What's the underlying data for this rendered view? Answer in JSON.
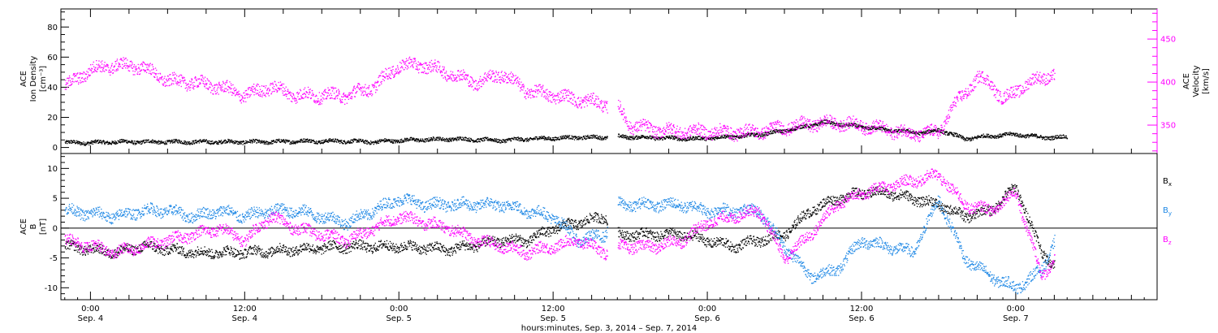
{
  "chart_data": [
    {
      "type": "scatter",
      "panel": "top",
      "left_axis_label": [
        "ACE",
        "Ion Density",
        "[cm⁻³]"
      ],
      "right_axis_label": [
        "ACE",
        "Velocity",
        "[km/s]"
      ],
      "left_ylim": [
        -4,
        92
      ],
      "left_yticks": [
        "0",
        "20",
        "40",
        "60",
        "80"
      ],
      "right_ylim": [
        317,
        485
      ],
      "right_yticks": [
        "350",
        "400",
        "450"
      ],
      "right_axis_color": "#ff00ff",
      "series": [
        {
          "color": "#000000",
          "axis": "left",
          "data": [
            [
              -2,
              3.5
            ],
            [
              0,
              3.5
            ],
            [
              2,
              4
            ],
            [
              4,
              4
            ],
            [
              6,
              4
            ],
            [
              8,
              4
            ],
            [
              10,
              4
            ],
            [
              12,
              4
            ],
            [
              14,
              4
            ],
            [
              16,
              4.5
            ],
            [
              18,
              4.5
            ],
            [
              20,
              4.5
            ],
            [
              22,
              4
            ],
            [
              24,
              5
            ],
            [
              26,
              5.5
            ],
            [
              28,
              6
            ],
            [
              30,
              5.5
            ],
            [
              32,
              5
            ],
            [
              34,
              6
            ],
            [
              36,
              6.5
            ],
            [
              38,
              7
            ],
            [
              40,
              7
            ],
            [
              41,
              7.5
            ],
            [
              43,
              7
            ],
            [
              45,
              6.5
            ],
            [
              47,
              6
            ],
            [
              49,
              7
            ],
            [
              51,
              8
            ],
            [
              53,
              10
            ],
            [
              55,
              13
            ],
            [
              57,
              17
            ],
            [
              59,
              15
            ],
            [
              61,
              13
            ],
            [
              63,
              11
            ],
            [
              65,
              10
            ],
            [
              66,
              12
            ],
            [
              68,
              6
            ],
            [
              70,
              8
            ],
            [
              72,
              9
            ],
            [
              74,
              7
            ],
            [
              76,
              7
            ]
          ]
        },
        {
          "color": "#ff00ff",
          "axis": "right",
          "data": [
            [
              -2,
              395
            ],
            [
              0,
              415
            ],
            [
              2,
              420
            ],
            [
              4,
              418
            ],
            [
              6,
              402
            ],
            [
              8,
              400
            ],
            [
              10,
              395
            ],
            [
              12,
              385
            ],
            [
              14,
              395
            ],
            [
              16,
              385
            ],
            [
              18,
              385
            ],
            [
              20,
              385
            ],
            [
              22,
              395
            ],
            [
              24,
              420
            ],
            [
              26,
              420
            ],
            [
              28,
              410
            ],
            [
              30,
              400
            ],
            [
              32,
              410
            ],
            [
              34,
              390
            ],
            [
              36,
              385
            ],
            [
              38,
              380
            ],
            [
              40,
              375
            ],
            [
              41,
              372
            ],
            [
              42,
              350
            ],
            [
              44,
              345
            ],
            [
              46,
              343
            ],
            [
              48,
              343
            ],
            [
              50,
              342
            ],
            [
              52,
              343
            ],
            [
              54,
              348
            ],
            [
              56,
              352
            ],
            [
              58,
              353
            ],
            [
              60,
              350
            ],
            [
              62,
              345
            ],
            [
              64,
              340
            ],
            [
              66,
              342
            ],
            [
              67,
              370
            ],
            [
              69,
              405
            ],
            [
              70,
              400
            ],
            [
              71,
              380
            ],
            [
              72,
              390
            ],
            [
              73,
              400
            ],
            [
              74,
              405
            ],
            [
              75,
              410
            ]
          ]
        }
      ]
    },
    {
      "type": "scatter",
      "panel": "bottom",
      "left_axis_label": [
        "ACE",
        "B",
        "[nT]"
      ],
      "ylim": [
        -12,
        12.5
      ],
      "yticks": [
        "-10",
        "-5",
        "0",
        "5",
        "10"
      ],
      "legend": [
        {
          "label": "B",
          "sub": "x",
          "color": "#000000"
        },
        {
          "label": "B",
          "sub": "y",
          "color": "#1f88e5"
        },
        {
          "label": "B",
          "sub": "z",
          "color": "#ff00ff"
        }
      ],
      "series": [
        {
          "color": "#000000",
          "data": [
            [
              -2,
              -3
            ],
            [
              2,
              -4
            ],
            [
              4,
              -3
            ],
            [
              8,
              -4
            ],
            [
              12,
              -4
            ],
            [
              16,
              -3.5
            ],
            [
              20,
              -3
            ],
            [
              24,
              -3
            ],
            [
              28,
              -3.5
            ],
            [
              32,
              -2
            ],
            [
              34,
              -2
            ],
            [
              36,
              0
            ],
            [
              38,
              1
            ],
            [
              40,
              2
            ],
            [
              41,
              -1
            ],
            [
              44,
              -1
            ],
            [
              46,
              -1
            ],
            [
              48,
              -2
            ],
            [
              50,
              -3
            ],
            [
              52,
              -2
            ],
            [
              54,
              -1
            ],
            [
              56,
              3
            ],
            [
              58,
              5
            ],
            [
              60,
              6
            ],
            [
              62,
              6
            ],
            [
              64,
              5
            ],
            [
              66,
              4
            ],
            [
              68,
              2
            ],
            [
              70,
              3
            ],
            [
              72,
              7
            ],
            [
              74,
              -4
            ],
            [
              75,
              -6
            ]
          ]
        },
        {
          "color": "#1f88e5",
          "data": [
            [
              -2,
              3
            ],
            [
              2,
              2
            ],
            [
              4,
              3
            ],
            [
              6,
              3
            ],
            [
              8,
              2
            ],
            [
              10,
              3
            ],
            [
              12,
              2
            ],
            [
              14,
              3
            ],
            [
              16,
              3
            ],
            [
              20,
              1
            ],
            [
              24,
              5
            ],
            [
              26,
              4
            ],
            [
              28,
              4
            ],
            [
              30,
              4
            ],
            [
              32,
              4
            ],
            [
              34,
              3
            ],
            [
              36,
              2
            ],
            [
              38,
              -2
            ],
            [
              40,
              -1
            ],
            [
              41,
              4
            ],
            [
              44,
              4
            ],
            [
              46,
              4
            ],
            [
              48,
              3
            ],
            [
              50,
              3
            ],
            [
              52,
              3
            ],
            [
              54,
              -3
            ],
            [
              56,
              -8
            ],
            [
              58,
              -7
            ],
            [
              60,
              -2
            ],
            [
              62,
              -3
            ],
            [
              64,
              -4
            ],
            [
              66,
              5
            ],
            [
              68,
              -5
            ],
            [
              70,
              -8
            ],
            [
              72,
              -10
            ],
            [
              74,
              -7
            ],
            [
              75,
              -2
            ]
          ]
        },
        {
          "color": "#ff00ff",
          "data": [
            [
              -2,
              -2
            ],
            [
              2,
              -4
            ],
            [
              4,
              -3
            ],
            [
              6,
              -2
            ],
            [
              8,
              -1
            ],
            [
              10,
              0
            ],
            [
              12,
              -2
            ],
            [
              14,
              2
            ],
            [
              16,
              0
            ],
            [
              20,
              -2
            ],
            [
              24,
              2
            ],
            [
              26,
              1
            ],
            [
              28,
              0
            ],
            [
              30,
              -2
            ],
            [
              32,
              -3
            ],
            [
              34,
              -4
            ],
            [
              36,
              -3
            ],
            [
              38,
              -2
            ],
            [
              40,
              -4
            ],
            [
              41,
              -3
            ],
            [
              44,
              -3
            ],
            [
              46,
              -2
            ],
            [
              48,
              1
            ],
            [
              50,
              2
            ],
            [
              52,
              3
            ],
            [
              54,
              -5
            ],
            [
              56,
              -1
            ],
            [
              58,
              4
            ],
            [
              60,
              6
            ],
            [
              62,
              7
            ],
            [
              64,
              8
            ],
            [
              66,
              9
            ],
            [
              68,
              4
            ],
            [
              70,
              3
            ],
            [
              72,
              6
            ],
            [
              74,
              -8
            ],
            [
              75,
              -5
            ]
          ]
        }
      ]
    }
  ],
  "x_axis": {
    "xlim": [
      -2.3,
      83
    ],
    "ticks": [
      {
        "x": 0,
        "time": "0:00",
        "date": "Sep. 4"
      },
      {
        "x": 12,
        "time": "12:00",
        "date": "Sep. 4"
      },
      {
        "x": 24,
        "time": "0:00",
        "date": "Sep. 5"
      },
      {
        "x": 36,
        "time": "12:00",
        "date": "Sep. 5"
      },
      {
        "x": 48,
        "time": "0:00",
        "date": "Sep. 6"
      },
      {
        "x": 60,
        "time": "12:00",
        "date": "Sep. 6"
      },
      {
        "x": 72,
        "time": "0:00",
        "date": "Sep. 7"
      }
    ],
    "label": "hours:minutes, Sep.  3, 2014 – Sep.  7, 2014"
  }
}
